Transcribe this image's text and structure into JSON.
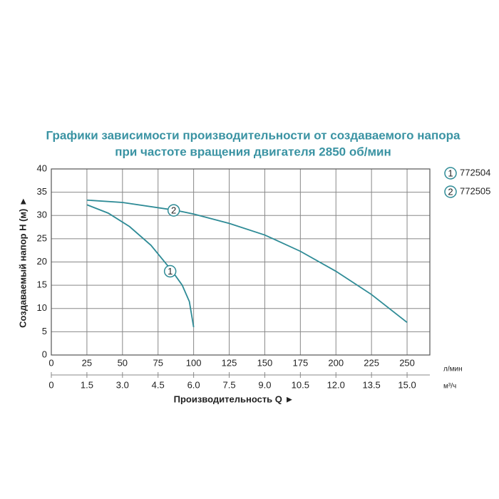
{
  "chart_data": {
    "type": "line",
    "title": [
      "Графики зависимости производительности от создаваемого напора",
      "при частоте вращения двигателя 2850 об/мин"
    ],
    "ylabel": "Создаваемый напор H (м) ►",
    "xlabel": "Производительность Q ►",
    "xunit": "л/мин",
    "x2unit": "м³/ч",
    "xlim": [
      0,
      266
    ],
    "ylim": [
      0,
      40
    ],
    "x2lim": [
      0,
      15.96
    ],
    "xticks": [
      0,
      25,
      50,
      75,
      100,
      125,
      150,
      175,
      200,
      225,
      250
    ],
    "yticks": [
      0,
      5,
      10,
      15,
      20,
      25,
      30,
      35,
      40
    ],
    "x2ticks": [
      0,
      1.5,
      {
        "value": 3,
        "label": "3.0"
      },
      4.5,
      {
        "value": 6,
        "label": "6.0"
      },
      7.5,
      {
        "value": 9,
        "label": "9.0"
      },
      10.5,
      {
        "value": 12,
        "label": "12.0"
      },
      13.5,
      {
        "value": 15,
        "label": "15.0"
      }
    ],
    "grid": true,
    "series": [
      {
        "name": "772504",
        "marker": "1",
        "color": "#2e8b96",
        "x": [
          25,
          40,
          55,
          70,
          85,
          92,
          97,
          100
        ],
        "values": [
          32.3,
          30.5,
          27.6,
          23.6,
          18,
          15,
          11.5,
          6
        ]
      },
      {
        "name": "772505",
        "marker": "2",
        "color": "#2e8b96",
        "x": [
          25,
          50,
          87.5,
          100,
          125,
          150,
          175,
          200,
          225,
          250
        ],
        "values": [
          33.3,
          32.8,
          31.1,
          30.3,
          28.3,
          25.8,
          22.3,
          18,
          13,
          7
        ]
      }
    ]
  }
}
